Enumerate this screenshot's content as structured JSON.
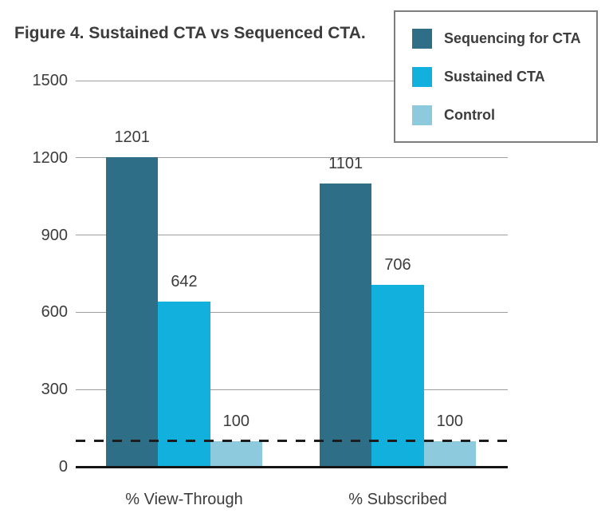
{
  "chart_data": {
    "type": "bar",
    "title": "Figure 4. Sustained CTA vs Sequenced CTA.",
    "categories": [
      "% View-Through",
      "% Subscribed"
    ],
    "series": [
      {
        "name": "Sequencing for CTA",
        "color": "#2e6e87",
        "values": [
          1201,
          1101
        ]
      },
      {
        "name": "Sustained CTA",
        "color": "#12b1dd",
        "values": [
          642,
          706
        ]
      },
      {
        "name": "Control",
        "color": "#8ecade",
        "values": [
          100,
          100
        ]
      }
    ],
    "ylim": [
      0,
      1500
    ],
    "yticks": [
      0,
      300,
      600,
      900,
      1200,
      1500
    ],
    "grid": true,
    "value_labels_shown": true,
    "legend_position": "top-right",
    "reference_line": {
      "value": 100,
      "style": "dashed",
      "color": "#1c1c1c"
    },
    "style": {
      "gridline_color": "#9e9e9e",
      "axis_color": "#141414",
      "text_color": "#3c3c3c",
      "legend_border_color": "#7d7d7d",
      "background_color": "#ffffff"
    }
  }
}
